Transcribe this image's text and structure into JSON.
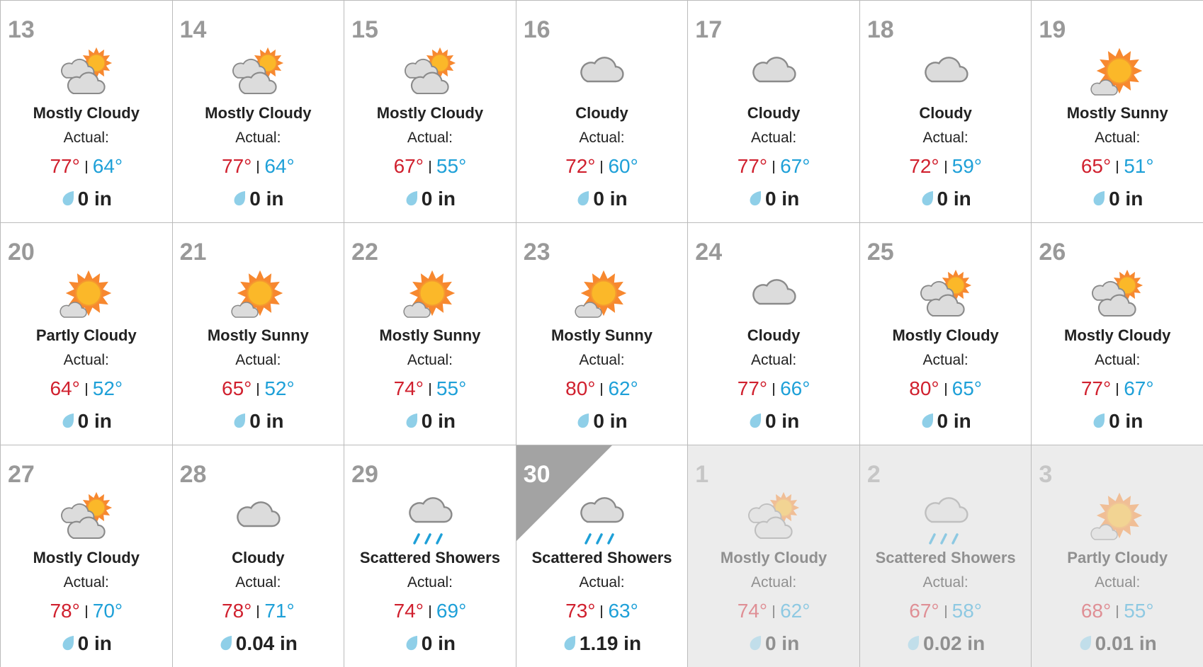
{
  "calendar": {
    "label": "Actual:",
    "days": [
      {
        "day": "13",
        "condition": "Mostly Cloudy",
        "high": "77°",
        "low": "64°",
        "precip": "0 in",
        "icon": "mostly-cloudy"
      },
      {
        "day": "14",
        "condition": "Mostly Cloudy",
        "high": "77°",
        "low": "64°",
        "precip": "0 in",
        "icon": "mostly-cloudy"
      },
      {
        "day": "15",
        "condition": "Mostly Cloudy",
        "high": "67°",
        "low": "55°",
        "precip": "0 in",
        "icon": "mostly-cloudy"
      },
      {
        "day": "16",
        "condition": "Cloudy",
        "high": "72°",
        "low": "60°",
        "precip": "0 in",
        "icon": "cloudy"
      },
      {
        "day": "17",
        "condition": "Cloudy",
        "high": "77°",
        "low": "67°",
        "precip": "0 in",
        "icon": "cloudy"
      },
      {
        "day": "18",
        "condition": "Cloudy",
        "high": "72°",
        "low": "59°",
        "precip": "0 in",
        "icon": "cloudy"
      },
      {
        "day": "19",
        "condition": "Mostly Sunny",
        "high": "65°",
        "low": "51°",
        "precip": "0 in",
        "icon": "sunny"
      },
      {
        "day": "20",
        "condition": "Partly Cloudy",
        "high": "64°",
        "low": "52°",
        "precip": "0 in",
        "icon": "sunny"
      },
      {
        "day": "21",
        "condition": "Mostly Sunny",
        "high": "65°",
        "low": "52°",
        "precip": "0 in",
        "icon": "sunny"
      },
      {
        "day": "22",
        "condition": "Mostly Sunny",
        "high": "74°",
        "low": "55°",
        "precip": "0 in",
        "icon": "sunny"
      },
      {
        "day": "23",
        "condition": "Mostly Sunny",
        "high": "80°",
        "low": "62°",
        "precip": "0 in",
        "icon": "sunny"
      },
      {
        "day": "24",
        "condition": "Cloudy",
        "high": "77°",
        "low": "66°",
        "precip": "0 in",
        "icon": "cloudy"
      },
      {
        "day": "25",
        "condition": "Mostly Cloudy",
        "high": "80°",
        "low": "65°",
        "precip": "0 in",
        "icon": "mostly-cloudy"
      },
      {
        "day": "26",
        "condition": "Mostly Cloudy",
        "high": "77°",
        "low": "67°",
        "precip": "0 in",
        "icon": "mostly-cloudy"
      },
      {
        "day": "27",
        "condition": "Mostly Cloudy",
        "high": "78°",
        "low": "70°",
        "precip": "0 in",
        "icon": "mostly-cloudy"
      },
      {
        "day": "28",
        "condition": "Cloudy",
        "high": "78°",
        "low": "71°",
        "precip": "0.04 in",
        "icon": "cloudy"
      },
      {
        "day": "29",
        "condition": "Scattered Showers",
        "high": "74°",
        "low": "69°",
        "precip": "0 in",
        "icon": "showers"
      },
      {
        "day": "30",
        "condition": "Scattered Showers",
        "high": "73°",
        "low": "63°",
        "precip": "1.19 in",
        "icon": "showers",
        "today": true
      },
      {
        "day": "1",
        "condition": "Mostly Cloudy",
        "high": "74°",
        "low": "62°",
        "precip": "0 in",
        "icon": "mostly-cloudy",
        "faded": true
      },
      {
        "day": "2",
        "condition": "Scattered Showers",
        "high": "67°",
        "low": "58°",
        "precip": "0.02 in",
        "icon": "showers",
        "faded": true
      },
      {
        "day": "3",
        "condition": "Partly Cloudy",
        "high": "68°",
        "low": "55°",
        "precip": "0.01 in",
        "icon": "sunny",
        "faded": true
      }
    ]
  }
}
